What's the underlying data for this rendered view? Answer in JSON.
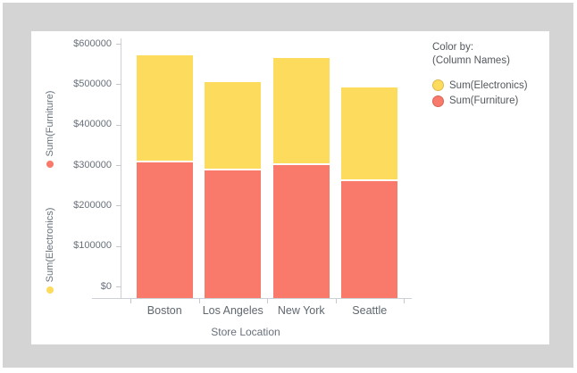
{
  "window": {
    "background_color": "#d4d4d4",
    "panel_color": "#ffffff"
  },
  "chart_data": {
    "type": "bar",
    "stacked": true,
    "categories": [
      "Boston",
      "Los Angeles",
      "New York",
      "Seattle"
    ],
    "series": [
      {
        "name": "Sum(Electronics)",
        "color": "#fddb5c",
        "values": [
          265000,
          220000,
          265000,
          232000
        ]
      },
      {
        "name": "Sum(Furniture)",
        "color": "#f9796a",
        "values": [
          306000,
          286000,
          300000,
          260000
        ]
      }
    ],
    "stack_order_bottom_to_top": [
      "Sum(Furniture)",
      "Sum(Electronics)"
    ],
    "xlabel": "Store Location",
    "ylim": [
      0,
      600000
    ],
    "y_ticks": [
      "$600000",
      "$500000",
      "$400000",
      "$300000",
      "$200000",
      "$100000",
      "$0"
    ],
    "y_tick_values": [
      600000,
      500000,
      400000,
      300000,
      200000,
      100000,
      0
    ],
    "grid": false,
    "legend_position": "right",
    "y_axis_series_labels": [
      {
        "label": "Sum(Furniture)",
        "dot_color": "#f9796a"
      },
      {
        "label": "Sum(Electronics)",
        "dot_color": "#fddb5c"
      }
    ],
    "legend": {
      "title_line1": "Color by:",
      "title_line2": "(Column Names)",
      "items": [
        {
          "label": "Sum(Electronics)",
          "color": "#fddb5c",
          "border": "#ddb94b"
        },
        {
          "label": "Sum(Furniture)",
          "color": "#f9796a",
          "border": "#d66457"
        }
      ]
    }
  }
}
